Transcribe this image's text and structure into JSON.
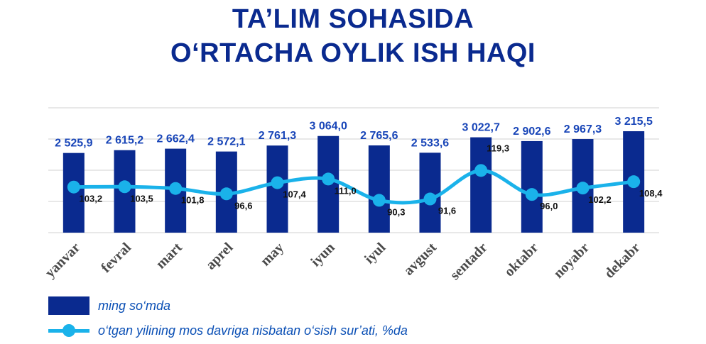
{
  "title": {
    "line1": "TA’LIM SOHASIDA",
    "line2": "O‘RTACHA OYLIK ISH HAQI"
  },
  "legend": {
    "bar_label": "ming so‘mda",
    "line_label": "o‘tgan yilining mos davriga nisbatan o‘sish sur’ati, %da"
  },
  "colors": {
    "bar": "#0a2a8f",
    "line": "#1ab2ea",
    "title": "#0a2a8f",
    "bar_value_label": "#1845b8",
    "grid": "#d9d9d9"
  },
  "chart_data": {
    "type": "bar",
    "categories": [
      "yanvar",
      "fevral",
      "mart",
      "aprel",
      "may",
      "iyun",
      "iyul",
      "avgust",
      "sentadr",
      "oktabr",
      "noyabr",
      "dekabr"
    ],
    "series": [
      {
        "name": "ming so‘mda",
        "type": "bar",
        "values": [
          2525.9,
          2615.2,
          2662.4,
          2572.1,
          2761.3,
          3064.0,
          2765.6,
          2533.6,
          3022.7,
          2902.6,
          2967.3,
          3215.5
        ],
        "labels": [
          "2 525,9",
          "2 615,2",
          "2 662,4",
          "2 572,1",
          "2 761,3",
          "3 064,0",
          "2 765,6",
          "2 533,6",
          "3 022,7",
          "2 902,6",
          "2 967,3",
          "3 215,5"
        ]
      },
      {
        "name": "o‘tgan yilining mos davriga nisbatan o‘sish sur’ati, %da",
        "type": "line",
        "values": [
          103.2,
          103.5,
          101.8,
          96.6,
          107.4,
          111.0,
          90.3,
          91.6,
          119.3,
          96.0,
          102.2,
          108.4
        ],
        "labels": [
          "103,2",
          "103,5",
          "101,8",
          "96,6",
          "107,4",
          "111,0",
          "90,3",
          "91,6",
          "119,3",
          "96,0",
          "102,2",
          "108,4"
        ]
      }
    ],
    "grid": true,
    "legend_position": "bottom-left"
  }
}
